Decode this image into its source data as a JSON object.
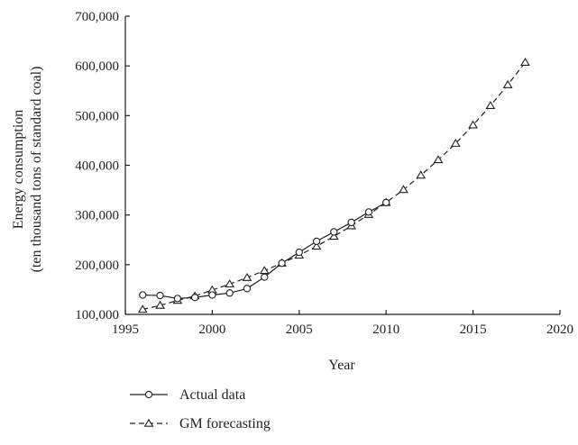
{
  "chart_data": {
    "type": "line",
    "title": "",
    "xlabel": "Year",
    "ylabel": [
      "Energy consumption",
      "(ten thousand tons of standard coal)"
    ],
    "xlim": [
      1995,
      2020
    ],
    "ylim": [
      100000,
      700000
    ],
    "x_ticks": [
      1995,
      2000,
      2005,
      2010,
      2015,
      2020
    ],
    "x_tick_labels": [
      "1995",
      "2000",
      "2005",
      "2010",
      "2015",
      "2020"
    ],
    "y_ticks": [
      100000,
      200000,
      300000,
      400000,
      500000,
      600000,
      700000
    ],
    "y_tick_labels": [
      "100,000",
      "200,000",
      "300,000",
      "400,000",
      "500,000",
      "600,000",
      "700,000"
    ],
    "grid": false,
    "legend_position": "bottom-center",
    "series": [
      {
        "name": "Actual data",
        "marker": "circle",
        "line_style": "solid",
        "color": "#231f20",
        "x": [
          1996,
          1997,
          1998,
          1999,
          2000,
          2001,
          2002,
          2003,
          2004,
          2005,
          2006,
          2007,
          2008,
          2009,
          2010
        ],
        "y": [
          139000,
          138000,
          132000,
          134000,
          139000,
          143000,
          152000,
          175000,
          203000,
          225000,
          247000,
          266000,
          285000,
          306000,
          325000
        ]
      },
      {
        "name": "GM forecasting",
        "marker": "triangle",
        "line_style": "dashed",
        "color": "#231f20",
        "x": [
          1996,
          1997,
          1998,
          1999,
          2000,
          2001,
          2002,
          2003,
          2004,
          2005,
          2006,
          2007,
          2008,
          2009,
          2010,
          2011,
          2012,
          2013,
          2014,
          2015,
          2016,
          2017,
          2018
        ],
        "y": [
          110000,
          118000,
          128000,
          137000,
          149000,
          161000,
          174000,
          188000,
          203000,
          219000,
          237000,
          257000,
          278000,
          301000,
          325000,
          351000,
          380000,
          411000,
          444000,
          481000,
          520000,
          562000,
          607000
        ]
      }
    ]
  }
}
